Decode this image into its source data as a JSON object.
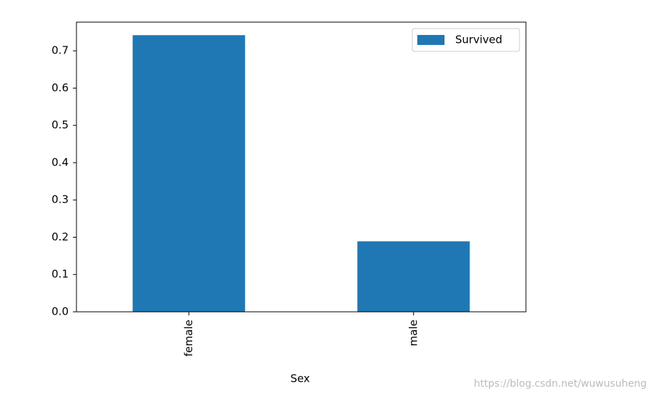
{
  "chart_data": {
    "type": "bar",
    "x_label": "Sex",
    "categories": [
      "female",
      "male"
    ],
    "series": [
      {
        "name": "Survived",
        "color": "#1f77b4",
        "values": [
          0.742,
          0.189
        ]
      }
    ],
    "ylim": [
      0,
      0.777
    ],
    "yticks": [
      {
        "value": 0,
        "label": "0.0"
      },
      0.1,
      0.2,
      0.3,
      0.4,
      0.5,
      0.6,
      0.7
    ],
    "legend": "upper right",
    "watermark": "https://blog.csdn.net/wuwusuheng"
  }
}
